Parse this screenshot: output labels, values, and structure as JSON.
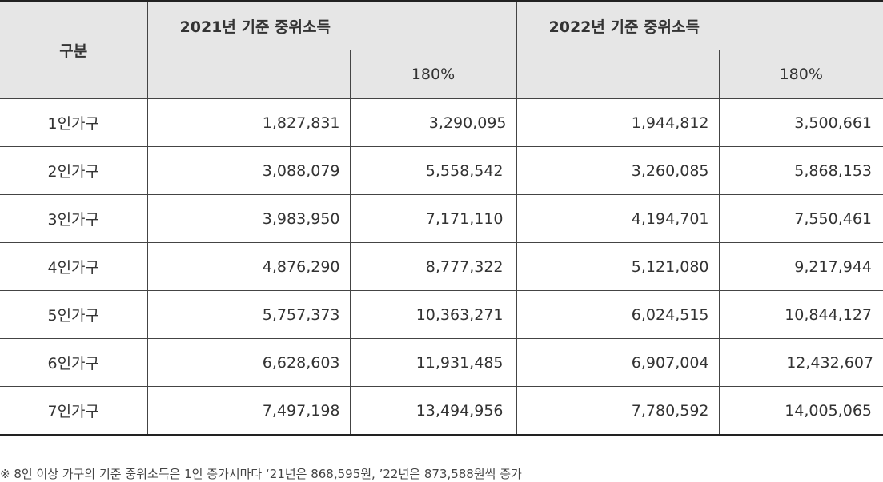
{
  "header": {
    "category": "구분",
    "year2021": "2021년 기준 중위소득",
    "year2021_pct": "180%",
    "year2022": "2022년 기준 중위소득",
    "year2022_pct": "180%"
  },
  "rows": [
    {
      "label": "1인가구",
      "v2021": "1,827,831",
      "p2021": "3,290,095",
      "v2022": "1,944,812",
      "p2022": "3,500,661"
    },
    {
      "label": "2인가구",
      "v2021": "3,088,079",
      "p2021": "5,558,542",
      "v2022": "3,260,085",
      "p2022": "5,868,153"
    },
    {
      "label": "3인가구",
      "v2021": "3,983,950",
      "p2021": "7,171,110",
      "v2022": "4,194,701",
      "p2022": "7,550,461"
    },
    {
      "label": "4인가구",
      "v2021": "4,876,290",
      "p2021": "8,777,322",
      "v2022": "5,121,080",
      "p2022": "9,217,944"
    },
    {
      "label": "5인가구",
      "v2021": "5,757,373",
      "p2021": "10,363,271",
      "v2022": "6,024,515",
      "p2022": "10,844,127"
    },
    {
      "label": "6인가구",
      "v2021": "6,628,603",
      "p2021": "11,931,485",
      "v2022": "6,907,004",
      "p2022": "12,432,607"
    },
    {
      "label": "7인가구",
      "v2021": "7,497,198",
      "p2021": "13,494,956",
      "v2022": "7,780,592",
      "p2022": "14,005,065"
    }
  ],
  "note": "※ 8인 이상 가구의 기준 중위소득은 1인 증가시마다 ‘21년은 868,595원, ’22년은 873,588원씩 증가"
}
